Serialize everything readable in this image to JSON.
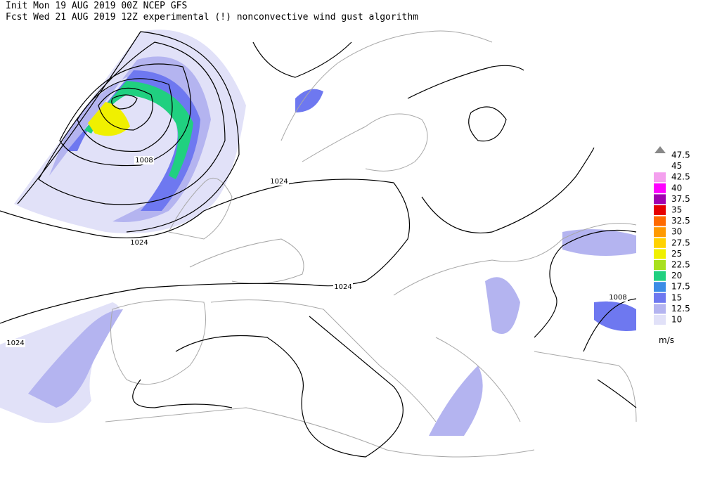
{
  "header": {
    "line1": "Init  Mon 19 AUG 2019 00Z  NCEP GFS",
    "line2": "Fcst Wed 21 AUG 2019 12Z  experimental (!) nonconvective wind gust algorithm"
  },
  "contour_labels": [
    "1008",
    "1024",
    "1024",
    "1024",
    "1024",
    "1008"
  ],
  "legend": {
    "items": [
      {
        "level": 47.5
      },
      {
        "level": 45
      },
      {
        "level": 42.5,
        "color": "#f4a0ee"
      },
      {
        "level": 40,
        "color": "#ff00ff"
      },
      {
        "level": 37.5,
        "color": "#a000b0"
      },
      {
        "level": 35,
        "color": "#e60000"
      },
      {
        "level": 32.5,
        "color": "#ff6a00"
      },
      {
        "level": 30,
        "color": "#ff9a00"
      },
      {
        "level": 27.5,
        "color": "#ffd200"
      },
      {
        "level": 25,
        "color": "#f0f000"
      },
      {
        "level": 22.5,
        "color": "#a8e01e"
      },
      {
        "level": 20,
        "color": "#20d080"
      },
      {
        "level": 17.5,
        "color": "#3c8ce6"
      },
      {
        "level": 15,
        "color": "#6e78f0"
      },
      {
        "level": 12.5,
        "color": "#b4b4f0"
      },
      {
        "level": 10,
        "color": "#e1e1f8"
      }
    ],
    "unit": "m/s"
  }
}
